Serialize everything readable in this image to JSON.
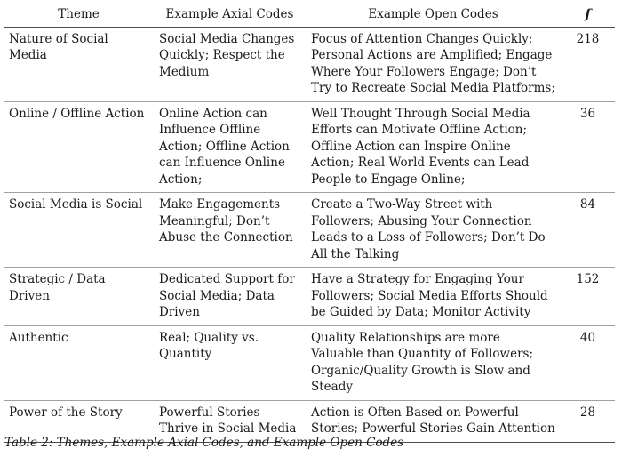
{
  "table": {
    "headers": {
      "theme": "Theme",
      "axial": "Example Axial Codes",
      "open": "Example Open Codes",
      "frequency": "f"
    },
    "rows": [
      {
        "theme": "Nature of Social Media",
        "axial": "Social Media Changes Quickly; Respect the Medium",
        "open": "Focus of Attention Changes Quickly; Personal Actions are Amplified; Engage Where Your Followers Engage; Don’t Try to Recreate Social Media Platforms;",
        "frequency": "218"
      },
      {
        "theme": "Online / Offline Action",
        "axial": "Online Action can Influence Offline Action; Offline Action can Influence Online Action;",
        "open": "Well Thought Through Social Media Efforts can Motivate Offline Action; Offline Action can Inspire Online Action; Real World Events can Lead People to Engage Online;",
        "frequency": "36"
      },
      {
        "theme": "Social Media is Social",
        "axial": "Make Engagements Meaningful; Don’t Abuse the Connection",
        "open": "Create a Two-Way Street with Followers; Abusing Your Connection Leads to a Loss of Followers; Don’t Do All the Talking",
        "frequency": "84"
      },
      {
        "theme": "Strategic / Data Driven",
        "axial": "Dedicated Support for Social Media; Data Driven",
        "open": "Have a Strategy for Engaging Your Followers; Social Media Efforts Should be Guided by Data; Monitor Activity",
        "frequency": "152"
      },
      {
        "theme": "Authentic",
        "axial": "Real; Quality vs. Quantity",
        "open": "Quality Relationships are more Valuable than Quantity of Followers; Organic/Quality Growth is Slow and Steady",
        "frequency": "40"
      },
      {
        "theme": "Power of the Story",
        "axial": "Powerful Stories Thrive in Social Media",
        "open": "Action is Often Based on Powerful Stories; Powerful Stories Gain Attention",
        "frequency": "28"
      }
    ]
  },
  "caption": "Table 2: Themes, Example Axial Codes, and Example Open Codes"
}
